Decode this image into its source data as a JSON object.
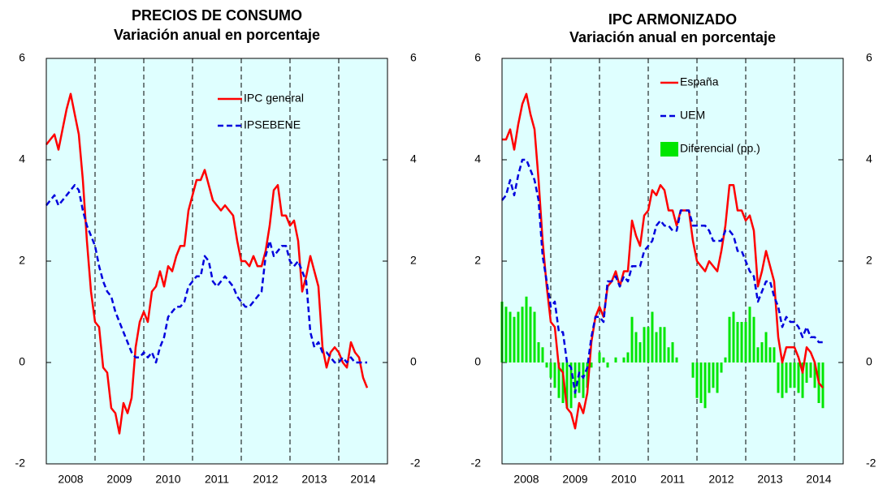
{
  "chart_data": [
    {
      "type": "line",
      "title": "PRECIOS DE CONSUMO",
      "subtitle": "Variación anual en porcentaje",
      "x": [
        2008,
        2008.083,
        2008.167,
        2008.25,
        2008.333,
        2008.417,
        2008.5,
        2008.583,
        2008.667,
        2008.75,
        2008.833,
        2008.917,
        2009,
        2009.083,
        2009.167,
        2009.25,
        2009.333,
        2009.417,
        2009.5,
        2009.583,
        2009.667,
        2009.75,
        2009.833,
        2009.917,
        2010,
        2010.083,
        2010.167,
        2010.25,
        2010.333,
        2010.417,
        2010.5,
        2010.583,
        2010.667,
        2010.75,
        2010.833,
        2010.917,
        2011,
        2011.083,
        2011.167,
        2011.25,
        2011.333,
        2011.417,
        2011.5,
        2011.583,
        2011.667,
        2011.75,
        2011.833,
        2011.917,
        2012,
        2012.083,
        2012.167,
        2012.25,
        2012.333,
        2012.417,
        2012.5,
        2012.583,
        2012.667,
        2012.75,
        2012.833,
        2012.917,
        2013,
        2013.083,
        2013.167,
        2013.25,
        2013.333,
        2013.417,
        2013.5,
        2013.583,
        2013.667,
        2013.75,
        2013.833,
        2013.917,
        2014,
        2014.083,
        2014.167,
        2014.25,
        2014.333,
        2014.417,
        2014.5,
        2014.583
      ],
      "series": [
        {
          "name": "IPC general",
          "type": "line",
          "color": "#ff0000",
          "dashed": false,
          "values": [
            4.3,
            4.4,
            4.5,
            4.2,
            4.6,
            5.0,
            5.3,
            4.9,
            4.5,
            3.6,
            2.4,
            1.4,
            0.8,
            0.7,
            -0.1,
            -0.2,
            -0.9,
            -1.0,
            -1.4,
            -0.8,
            -1.0,
            -0.7,
            0.3,
            0.8,
            1.0,
            0.8,
            1.4,
            1.5,
            1.8,
            1.5,
            1.9,
            1.8,
            2.1,
            2.3,
            2.3,
            3.0,
            3.3,
            3.6,
            3.6,
            3.8,
            3.5,
            3.2,
            3.1,
            3.0,
            3.1,
            3.0,
            2.9,
            2.4,
            2.0,
            2.0,
            1.9,
            2.1,
            1.9,
            1.9,
            2.2,
            2.7,
            3.4,
            3.5,
            2.9,
            2.9,
            2.7,
            2.8,
            2.4,
            1.4,
            1.7,
            2.1,
            1.8,
            1.5,
            0.3,
            -0.1,
            0.2,
            0.3,
            0.2,
            0.0,
            -0.1,
            0.4,
            0.2,
            0.1,
            -0.3,
            -0.5
          ]
        },
        {
          "name": "IPSEBENE",
          "type": "line",
          "color": "#0000dd",
          "dashed": true,
          "values": [
            3.1,
            3.2,
            3.3,
            3.1,
            3.2,
            3.3,
            3.4,
            3.5,
            3.4,
            3.0,
            2.7,
            2.5,
            2.3,
            1.9,
            1.6,
            1.4,
            1.3,
            1.0,
            0.8,
            0.6,
            0.4,
            0.2,
            0.1,
            0.1,
            0.2,
            0.1,
            0.2,
            0.0,
            0.3,
            0.5,
            0.9,
            1.0,
            1.1,
            1.1,
            1.2,
            1.5,
            1.6,
            1.7,
            1.7,
            2.1,
            2.0,
            1.6,
            1.5,
            1.6,
            1.7,
            1.6,
            1.5,
            1.3,
            1.2,
            1.1,
            1.1,
            1.2,
            1.3,
            1.4,
            2.1,
            2.4,
            2.1,
            2.2,
            2.3,
            2.3,
            2.0,
            1.9,
            2.0,
            1.8,
            1.6,
            0.6,
            0.3,
            0.4,
            0.2,
            0.2,
            0.1,
            0.0,
            0.0,
            0.1,
            0.0,
            0.1,
            0.0,
            0.0,
            0.0,
            0.0
          ]
        }
      ],
      "xlim": [
        2008,
        2015
      ],
      "xticks": [
        {
          "value": 2008.5,
          "label": "2008"
        },
        {
          "value": 2009.5,
          "label": "2009"
        },
        {
          "value": 2010.5,
          "label": "2010"
        },
        {
          "value": 2011.5,
          "label": "2011"
        },
        {
          "value": 2012.5,
          "label": "2012"
        },
        {
          "value": 2013.5,
          "label": "2013"
        },
        {
          "value": 2014.5,
          "label": "2014"
        }
      ],
      "xgrid": [
        2009,
        2010,
        2011,
        2012,
        2013,
        2014
      ],
      "ylim": [
        -2,
        6
      ],
      "yticks": [
        -2,
        0,
        2,
        4,
        6
      ],
      "y2lim": [
        -2,
        6
      ],
      "y2ticks": [
        -2,
        0,
        2,
        4,
        6
      ],
      "background": "#dfffff"
    },
    {
      "type": "line",
      "title": "IPC ARMONIZADO",
      "subtitle": "Variación anual en porcentaje",
      "x": [
        2008,
        2008.083,
        2008.167,
        2008.25,
        2008.333,
        2008.417,
        2008.5,
        2008.583,
        2008.667,
        2008.75,
        2008.833,
        2008.917,
        2009,
        2009.083,
        2009.167,
        2009.25,
        2009.333,
        2009.417,
        2009.5,
        2009.583,
        2009.667,
        2009.75,
        2009.833,
        2009.917,
        2010,
        2010.083,
        2010.167,
        2010.25,
        2010.333,
        2010.417,
        2010.5,
        2010.583,
        2010.667,
        2010.75,
        2010.833,
        2010.917,
        2011,
        2011.083,
        2011.167,
        2011.25,
        2011.333,
        2011.417,
        2011.5,
        2011.583,
        2011.667,
        2011.75,
        2011.833,
        2011.917,
        2012,
        2012.083,
        2012.167,
        2012.25,
        2012.333,
        2012.417,
        2012.5,
        2012.583,
        2012.667,
        2012.75,
        2012.833,
        2012.917,
        2013,
        2013.083,
        2013.167,
        2013.25,
        2013.333,
        2013.417,
        2013.5,
        2013.583,
        2013.667,
        2013.75,
        2013.833,
        2013.917,
        2014,
        2014.083,
        2014.167,
        2014.25,
        2014.333,
        2014.417,
        2014.5,
        2014.583
      ],
      "series": [
        {
          "name": "Diferencial (pp.)",
          "type": "bar",
          "color": "#00e600",
          "values": [
            1.2,
            1.1,
            1.0,
            0.9,
            1.0,
            1.1,
            1.3,
            1.1,
            1.0,
            0.4,
            0.3,
            -0.1,
            -0.3,
            -0.5,
            -0.7,
            -0.8,
            -0.9,
            -0.9,
            -0.7,
            -0.6,
            -0.7,
            -0.5,
            -0.1,
            0.0,
            0.2,
            0.1,
            -0.1,
            0.0,
            0.1,
            0.0,
            0.1,
            0.2,
            0.9,
            0.6,
            0.4,
            0.7,
            0.7,
            1.0,
            0.6,
            0.7,
            0.7,
            0.3,
            0.4,
            0.1,
            0.0,
            0.0,
            0.0,
            -0.3,
            -0.7,
            -0.8,
            -0.9,
            -0.6,
            -0.5,
            -0.6,
            -0.2,
            0.1,
            0.9,
            1.0,
            0.8,
            0.8,
            0.8,
            1.1,
            0.9,
            0.3,
            0.4,
            0.6,
            0.3,
            0.3,
            -0.6,
            -0.7,
            -0.6,
            -0.5,
            -0.5,
            -0.6,
            -0.7,
            -0.4,
            -0.3,
            -0.5,
            -0.8,
            -0.9
          ]
        },
        {
          "name": "España",
          "type": "line",
          "color": "#ff0000",
          "dashed": false,
          "values": [
            4.4,
            4.4,
            4.6,
            4.2,
            4.7,
            5.1,
            5.3,
            4.9,
            4.6,
            3.6,
            2.4,
            1.5,
            0.8,
            0.7,
            -0.1,
            -0.2,
            -0.9,
            -1.0,
            -1.3,
            -0.8,
            -1.0,
            -0.6,
            0.4,
            0.9,
            1.1,
            0.9,
            1.5,
            1.6,
            1.8,
            1.5,
            1.8,
            1.8,
            2.8,
            2.5,
            2.3,
            2.9,
            3.0,
            3.4,
            3.3,
            3.5,
            3.4,
            3.0,
            3.0,
            2.7,
            3.0,
            3.0,
            3.0,
            2.4,
            2.0,
            1.9,
            1.8,
            2.0,
            1.9,
            1.8,
            2.2,
            2.7,
            3.5,
            3.5,
            3.0,
            3.0,
            2.8,
            2.9,
            2.6,
            1.5,
            1.8,
            2.2,
            1.9,
            1.6,
            0.5,
            0.0,
            0.3,
            0.3,
            0.3,
            0.1,
            -0.2,
            0.3,
            0.2,
            0.0,
            -0.4,
            -0.5
          ]
        },
        {
          "name": "UEM",
          "type": "line",
          "color": "#0000dd",
          "dashed": true,
          "values": [
            3.2,
            3.3,
            3.6,
            3.3,
            3.7,
            4.0,
            4.0,
            3.8,
            3.6,
            3.2,
            2.1,
            1.6,
            1.1,
            1.2,
            0.6,
            0.6,
            0.0,
            -0.1,
            -0.6,
            -0.2,
            -0.3,
            -0.1,
            0.5,
            0.9,
            0.9,
            0.8,
            1.6,
            1.6,
            1.7,
            1.5,
            1.7,
            1.6,
            1.9,
            1.9,
            1.9,
            2.2,
            2.3,
            2.4,
            2.7,
            2.8,
            2.7,
            2.7,
            2.6,
            2.6,
            3.0,
            3.0,
            3.0,
            2.7,
            2.7,
            2.7,
            2.7,
            2.6,
            2.4,
            2.4,
            2.4,
            2.6,
            2.6,
            2.5,
            2.2,
            2.2,
            2.0,
            1.8,
            1.7,
            1.2,
            1.4,
            1.6,
            1.6,
            1.3,
            1.1,
            0.7,
            0.9,
            0.8,
            0.8,
            0.7,
            0.5,
            0.7,
            0.5,
            0.5,
            0.4,
            0.4
          ]
        }
      ],
      "legend_order": [
        1,
        2,
        0
      ],
      "xlim": [
        2008,
        2015
      ],
      "xticks": [
        {
          "value": 2008.5,
          "label": "2008"
        },
        {
          "value": 2009.5,
          "label": "2009"
        },
        {
          "value": 2010.5,
          "label": "2010"
        },
        {
          "value": 2011.5,
          "label": "2011"
        },
        {
          "value": 2012.5,
          "label": "2012"
        },
        {
          "value": 2013.5,
          "label": "2013"
        },
        {
          "value": 2014.5,
          "label": "2014"
        }
      ],
      "xgrid": [
        2009,
        2010,
        2011,
        2012,
        2013,
        2014
      ],
      "ylim": [
        -2,
        6
      ],
      "yticks": [
        -2,
        0,
        2,
        4,
        6
      ],
      "y2lim": [
        -2,
        6
      ],
      "y2ticks": [
        -2,
        0,
        2,
        4,
        6
      ],
      "background": "#dfffff"
    }
  ]
}
